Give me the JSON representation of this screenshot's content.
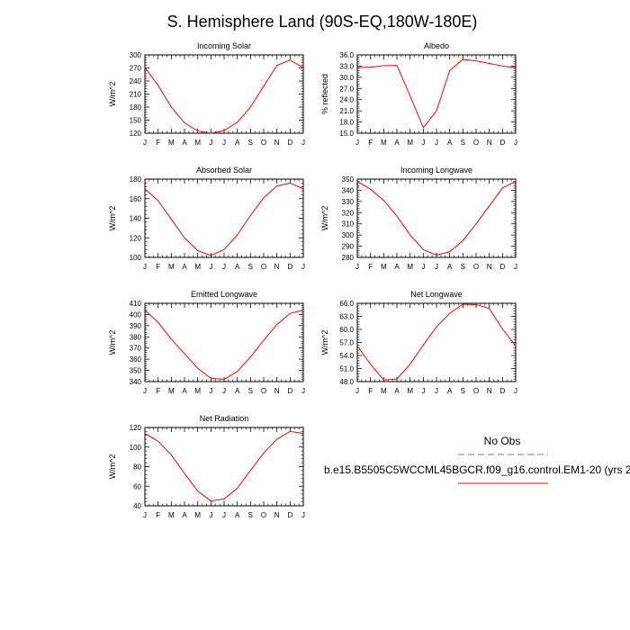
{
  "figure": {
    "title": "S. Hemisphere Land (90S-EQ,180W-180E)"
  },
  "legend": {
    "obs_label": "No Obs",
    "model_label": "b.e15.B5505C5WCCML45BGCR.f09_g16.control.EM1-20 (yrs 2",
    "obs_color": "#6a6aff",
    "model_color": "#ff0000"
  },
  "colors": {
    "line": "#ff0000",
    "axis": "#000000"
  },
  "chart_data": [
    {
      "type": "line",
      "title": "Incoming Solar",
      "xlabel": "",
      "ylabel": "W/m^2",
      "categories": [
        "J",
        "F",
        "M",
        "A",
        "M",
        "J",
        "J",
        "A",
        "S",
        "O",
        "N",
        "D",
        "J"
      ],
      "ylim": [
        120,
        300
      ],
      "yticks": [
        120,
        150,
        180,
        210,
        240,
        270,
        300
      ],
      "ytick_format": 0,
      "series": [
        {
          "name": "b.e15.B5505C5WCCML45BGCR.f09_g16.control.EM1-20",
          "values": [
            271,
            230,
            180,
            144,
            125,
            120,
            126,
            145,
            180,
            228,
            276,
            288,
            271
          ]
        }
      ]
    },
    {
      "type": "line",
      "title": "Albedo",
      "xlabel": "",
      "ylabel": "% reflected",
      "categories": [
        "J",
        "F",
        "M",
        "A",
        "M",
        "J",
        "J",
        "A",
        "S",
        "O",
        "N",
        "D",
        "J"
      ],
      "ylim": [
        15,
        36
      ],
      "yticks": [
        15,
        18,
        21,
        24,
        27,
        30,
        33,
        36
      ],
      "ytick_format": 1,
      "series": [
        {
          "name": "b.e15.B5505C5WCCML45BGCR.f09_g16.control.EM1-20",
          "values": [
            32.6,
            32.7,
            33.1,
            33.2,
            25.0,
            16.5,
            21.0,
            31.8,
            34.8,
            34.4,
            33.7,
            33.0,
            32.6
          ]
        }
      ]
    },
    {
      "type": "line",
      "title": "Absorbed Solar",
      "xlabel": "",
      "ylabel": "W/m^2",
      "categories": [
        "J",
        "F",
        "M",
        "A",
        "M",
        "J",
        "J",
        "A",
        "S",
        "O",
        "N",
        "D",
        "J"
      ],
      "ylim": [
        100,
        180
      ],
      "yticks": [
        100,
        120,
        140,
        160,
        180
      ],
      "ytick_format": 0,
      "series": [
        {
          "name": "b.e15.B5505C5WCCML45BGCR.f09_g16.control.EM1-20",
          "values": [
            170,
            158,
            139,
            120,
            107,
            102,
            108,
            123,
            143,
            161,
            173,
            176,
            170
          ]
        }
      ]
    },
    {
      "type": "line",
      "title": "Incoming Longwave",
      "xlabel": "",
      "ylabel": "W/m^2",
      "categories": [
        "J",
        "F",
        "M",
        "A",
        "M",
        "J",
        "J",
        "A",
        "S",
        "O",
        "N",
        "D",
        "J"
      ],
      "ylim": [
        280,
        350
      ],
      "yticks": [
        280,
        290,
        300,
        310,
        320,
        330,
        340,
        350
      ],
      "ytick_format": 0,
      "series": [
        {
          "name": "b.e15.B5505C5WCCML45BGCR.f09_g16.control.EM1-20",
          "values": [
            348,
            341,
            331,
            317,
            300,
            287,
            282,
            285,
            295,
            310,
            326,
            342,
            348
          ]
        }
      ]
    },
    {
      "type": "line",
      "title": "Emitted Longwave",
      "xlabel": "",
      "ylabel": "W/m^2",
      "categories": [
        "J",
        "F",
        "M",
        "A",
        "M",
        "J",
        "J",
        "A",
        "S",
        "O",
        "N",
        "D",
        "J"
      ],
      "ylim": [
        340,
        410
      ],
      "yticks": [
        340,
        350,
        360,
        370,
        380,
        390,
        400,
        410
      ],
      "ytick_format": 0,
      "series": [
        {
          "name": "b.e15.B5505C5WCCML45BGCR.f09_g16.control.EM1-20",
          "values": [
            404,
            393,
            378,
            365,
            352,
            343,
            342,
            349,
            362,
            377,
            391,
            401,
            404
          ]
        }
      ]
    },
    {
      "type": "line",
      "title": "Net Longwave",
      "xlabel": "",
      "ylabel": "W/m^2",
      "categories": [
        "J",
        "F",
        "M",
        "A",
        "M",
        "J",
        "J",
        "A",
        "S",
        "O",
        "N",
        "D",
        "J"
      ],
      "ylim": [
        48,
        66
      ],
      "yticks": [
        48,
        51,
        54,
        57,
        60,
        63,
        66
      ],
      "ytick_format": 1,
      "series": [
        {
          "name": "b.e15.B5505C5WCCML45BGCR.f09_g16.control.EM1-20",
          "values": [
            56.2,
            52.0,
            48.4,
            48.6,
            52.0,
            56.4,
            60.6,
            63.7,
            65.8,
            65.7,
            64.8,
            60.1,
            56.2
          ]
        }
      ]
    },
    {
      "type": "line",
      "title": "Net Radiation",
      "xlabel": "",
      "ylabel": "W/m^2",
      "categories": [
        "J",
        "F",
        "M",
        "A",
        "M",
        "J",
        "J",
        "A",
        "S",
        "O",
        "N",
        "D",
        "J"
      ],
      "ylim": [
        40,
        120
      ],
      "yticks": [
        40,
        60,
        80,
        100,
        120
      ],
      "ytick_format": 0,
      "series": [
        {
          "name": "b.e15.B5505C5WCCML45BGCR.f09_g16.control.EM1-20",
          "values": [
            114,
            106,
            92,
            73,
            55,
            45,
            47,
            58,
            76,
            94,
            108,
            116,
            114
          ]
        }
      ]
    }
  ]
}
